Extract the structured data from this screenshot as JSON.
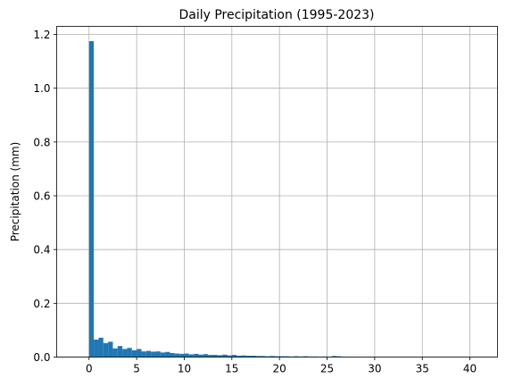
{
  "chart_data": {
    "type": "bar",
    "title": "Daily Precipitation (1995-2023)",
    "xlabel": "",
    "ylabel": "Precipitation (mm)",
    "xlim": [
      -3.4,
      42.9
    ],
    "ylim": [
      0,
      1.23
    ],
    "x_ticks": [
      "0",
      "5",
      "10",
      "15",
      "20",
      "25",
      "30",
      "35",
      "40"
    ],
    "y_ticks": [
      "0.0",
      "0.2",
      "0.4",
      "0.6",
      "0.8",
      "1.0",
      "1.2"
    ],
    "grid": true,
    "bar_color": "#1f77b4",
    "bin_edges_start": 0,
    "bin_width": 0.5,
    "values": [
      1.175,
      0.065,
      0.072,
      0.052,
      0.057,
      0.032,
      0.041,
      0.03,
      0.034,
      0.025,
      0.03,
      0.021,
      0.023,
      0.02,
      0.021,
      0.017,
      0.019,
      0.015,
      0.013,
      0.012,
      0.013,
      0.01,
      0.012,
      0.009,
      0.011,
      0.008,
      0.008,
      0.007,
      0.009,
      0.006,
      0.008,
      0.005,
      0.006,
      0.005,
      0.005,
      0.004,
      0.004,
      0.003,
      0.004,
      0.003,
      0.003,
      0.003,
      0.002,
      0.003,
      0.002,
      0.003,
      0.002,
      0.002,
      0.001,
      0.002,
      0.001,
      0.004,
      0.003,
      0.001,
      0.001,
      0.0,
      0.001,
      0.0,
      0.001,
      0.0,
      0.0,
      0.0,
      0.0,
      0.0,
      0.0,
      0.0,
      0.0,
      0.0,
      0.0,
      0.0,
      0.0,
      0.0,
      0.0,
      0.0,
      0.0,
      0.0,
      0.0,
      0.0,
      0.0,
      0.0
    ]
  }
}
